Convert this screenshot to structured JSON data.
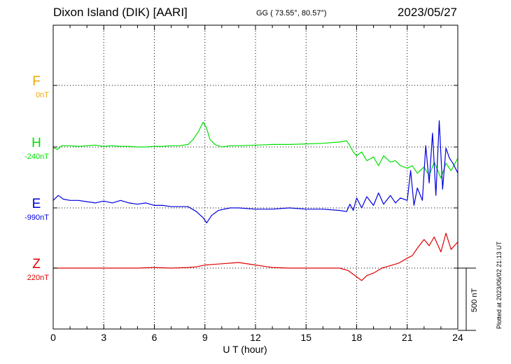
{
  "header": {
    "station": "Dixon Island (DIK)  [AARI]",
    "coords": "GG ( 73.55°,  80.57°)",
    "date": "2023/05/27"
  },
  "footer": {
    "plotted": "Plotted at 2023/06/02 21:13 UT"
  },
  "scale_bar": {
    "label": "500 nT",
    "value_nT": 500
  },
  "chart_data": {
    "type": "line",
    "xlabel": "U T (hour)",
    "xlim": [
      0,
      24
    ],
    "xticks": [
      0,
      3,
      6,
      9,
      12,
      15,
      18,
      21,
      24
    ],
    "xtick_labels": [
      "0",
      "3",
      "6",
      "9",
      "12",
      "15",
      "18",
      "21",
      "24"
    ],
    "grid": true,
    "series": [
      {
        "name": "F",
        "offset_label": "0nT",
        "color": "#f0a800",
        "x": [],
        "values": []
      },
      {
        "name": "H",
        "offset_label": "-240nT",
        "color": "#00e000",
        "x": [
          0,
          0.25,
          0.5,
          1,
          1.5,
          2,
          2.5,
          3,
          3.5,
          4,
          4.5,
          5,
          5.5,
          6,
          6.5,
          7,
          7.5,
          8,
          8.3,
          8.6,
          8.9,
          9.1,
          9.3,
          9.6,
          10,
          10.5,
          11,
          12,
          13,
          14,
          15,
          16,
          17,
          17.4,
          17.6,
          17.8,
          18,
          18.3,
          18.6,
          19,
          19.3,
          19.6,
          20,
          20.3,
          20.6,
          21,
          21.3,
          21.6,
          22,
          22.3,
          22.6,
          23,
          23.3,
          23.6,
          24
        ],
        "values": [
          -5,
          -20,
          10,
          10,
          5,
          10,
          15,
          5,
          10,
          5,
          5,
          0,
          0,
          5,
          5,
          10,
          10,
          20,
          60,
          120,
          200,
          150,
          60,
          20,
          0,
          10,
          10,
          15,
          20,
          20,
          25,
          30,
          40,
          50,
          10,
          -40,
          -70,
          -40,
          -110,
          -80,
          -150,
          -70,
          -120,
          -110,
          -150,
          -170,
          -150,
          -210,
          -160,
          -230,
          -120,
          -250,
          -130,
          -190,
          -90
        ]
      },
      {
        "name": "E",
        "offset_label": "-990nT",
        "color": "#0000e0",
        "x": [
          0,
          0.3,
          0.6,
          1,
          1.5,
          2,
          2.5,
          3,
          3.5,
          4,
          4.5,
          5,
          5.5,
          6,
          6.5,
          7,
          7.5,
          8,
          8.5,
          8.9,
          9.1,
          9.4,
          9.8,
          10.5,
          11,
          12,
          13,
          14,
          15,
          16,
          17,
          17.4,
          17.6,
          17.8,
          18,
          18.3,
          18.6,
          19,
          19.3,
          19.6,
          20,
          20.3,
          20.6,
          21,
          21.2,
          21.4,
          21.6,
          21.9,
          22.1,
          22.3,
          22.5,
          22.7,
          22.9,
          23.1,
          23.3,
          23.5,
          23.7,
          24
        ],
        "values": [
          60,
          100,
          70,
          60,
          60,
          50,
          40,
          55,
          40,
          60,
          40,
          30,
          40,
          20,
          20,
          10,
          10,
          10,
          -30,
          -80,
          -120,
          -60,
          -20,
          0,
          0,
          -10,
          -10,
          0,
          -10,
          -10,
          -20,
          -30,
          30,
          -20,
          80,
          0,
          90,
          20,
          120,
          30,
          100,
          40,
          80,
          60,
          300,
          20,
          160,
          60,
          500,
          200,
          600,
          100,
          700,
          150,
          480,
          400,
          360,
          280
        ]
      },
      {
        "name": "Z",
        "offset_label": "220nT",
        "color": "#e00000",
        "x": [
          0,
          1,
          2,
          3,
          4,
          5,
          6,
          7,
          8,
          8.5,
          9,
          9.5,
          10,
          11,
          12,
          13,
          14,
          15,
          16,
          17,
          17.5,
          18,
          18.3,
          18.6,
          19,
          19.5,
          20,
          20.5,
          21,
          21.3,
          21.6,
          22,
          22.3,
          22.6,
          23,
          23.3,
          23.6,
          24
        ],
        "values": [
          0,
          0,
          0,
          0,
          0,
          0,
          5,
          0,
          5,
          10,
          25,
          30,
          35,
          45,
          25,
          5,
          0,
          0,
          0,
          0,
          -20,
          -70,
          -100,
          -60,
          -40,
          0,
          20,
          40,
          80,
          100,
          160,
          230,
          180,
          250,
          130,
          280,
          150,
          210
        ]
      }
    ]
  }
}
